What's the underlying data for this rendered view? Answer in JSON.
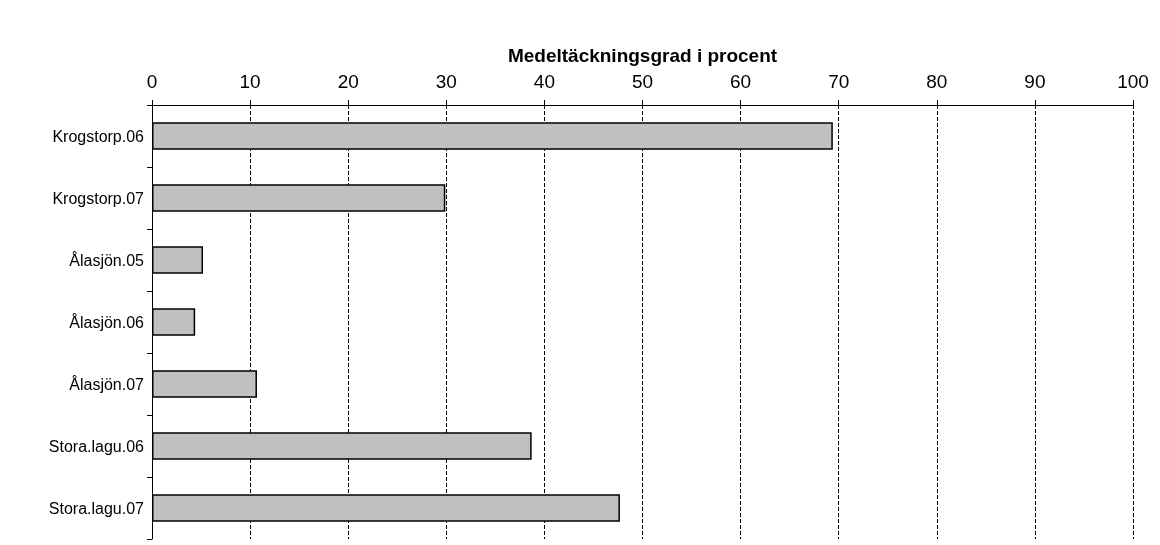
{
  "chart_data": {
    "type": "bar",
    "orientation": "horizontal",
    "xlabel": "Medeltäckningsgrad i procent",
    "categories": [
      "Krogstorp.06",
      "Krogstorp.07",
      "Ålasjön.05",
      "Ålasjön.06",
      "Ålasjön.07",
      "Stora.lagu.06",
      "Stora.lagu.07"
    ],
    "values": [
      69.4,
      29.9,
      5.2,
      4.4,
      10.7,
      38.7,
      47.7
    ],
    "color": "#c0c0c0",
    "xlim": [
      0,
      100
    ],
    "xticks": [
      0,
      10,
      20,
      30,
      40,
      50,
      60,
      70,
      80,
      90,
      100
    ],
    "grid": "x",
    "line_style": "dashed"
  }
}
